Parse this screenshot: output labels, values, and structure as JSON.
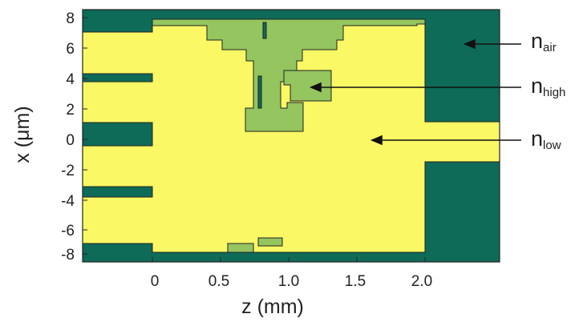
{
  "axes": {
    "xlabel": "z (mm)",
    "ylabel": "x (μm)",
    "x_ticks": [
      "0",
      "0.5",
      "1.0",
      "1.5",
      "2.0"
    ],
    "y_ticks": [
      "8",
      "6",
      "4",
      "2",
      "0",
      "-2",
      "-4",
      "-6",
      "-8"
    ]
  },
  "colors": {
    "air": "#0e6b58",
    "low": "#fbf865",
    "high": "#94c55e",
    "outline": "#222222"
  },
  "legend": [
    {
      "base": "n",
      "sub": "air"
    },
    {
      "base": "n",
      "sub": "high"
    },
    {
      "base": "n",
      "sub": "low"
    }
  ]
}
